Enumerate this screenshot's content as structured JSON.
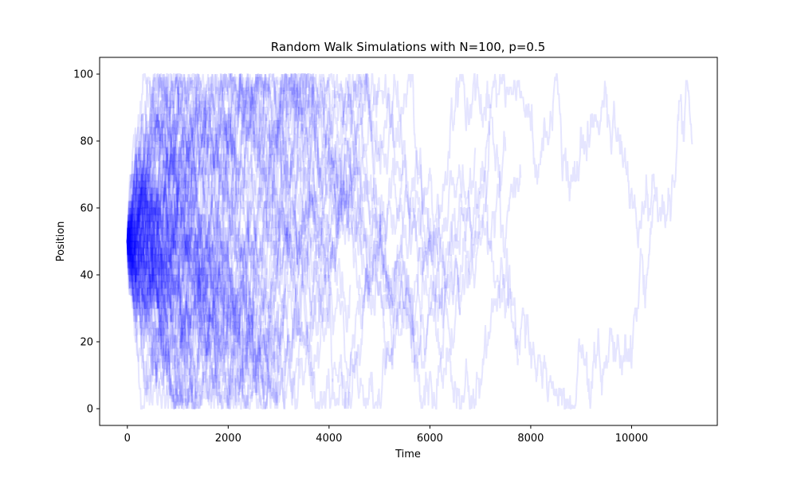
{
  "chart_data": {
    "type": "line",
    "title": "Random Walk Simulations with N=100, p=0.5",
    "xlabel": "Time",
    "ylabel": "Position",
    "xlim": [
      -550,
      11700
    ],
    "ylim": [
      -5,
      105
    ],
    "xticks": [
      0,
      2000,
      4000,
      6000,
      8000,
      10000
    ],
    "yticks": [
      0,
      20,
      40,
      60,
      80,
      100
    ],
    "xtick_labels": [
      "0",
      "2000",
      "4000",
      "6000",
      "8000",
      "10000"
    ],
    "ytick_labels": [
      "0",
      "20",
      "40",
      "60",
      "80",
      "100"
    ],
    "grid": false,
    "legend": "none",
    "line_color": "#0000ff",
    "line_opacity": 0.1,
    "start_position": 50,
    "boundaries": [
      0,
      100
    ],
    "step_probability": 0.5,
    "num_walks": 100,
    "walk_lengths_approx": [
      300,
      420,
      480,
      520,
      560,
      600,
      620,
      650,
      680,
      700,
      720,
      750,
      780,
      800,
      820,
      850,
      880,
      900,
      920,
      950,
      980,
      1000,
      1030,
      1060,
      1100,
      1130,
      1160,
      1200,
      1230,
      1260,
      1300,
      1340,
      1380,
      1420,
      1460,
      1500,
      1540,
      1580,
      1620,
      1660,
      1700,
      1750,
      1800,
      1850,
      1900,
      1950,
      2000,
      2050,
      2100,
      2150,
      2200,
      2260,
      2320,
      2380,
      2440,
      2500,
      2560,
      2620,
      2680,
      2740,
      2800,
      2870,
      2940,
      3010,
      3080,
      3150,
      3220,
      3300,
      3380,
      3460,
      3540,
      3620,
      3700,
      3780,
      3860,
      3950,
      4040,
      4130,
      4220,
      4320,
      4420,
      4520,
      4620,
      4720,
      4850,
      4980,
      5100,
      5250,
      5450,
      5700,
      6000,
      6300,
      6600,
      6900,
      7200,
      7500,
      7750,
      7800,
      10450,
      11200
    ]
  }
}
